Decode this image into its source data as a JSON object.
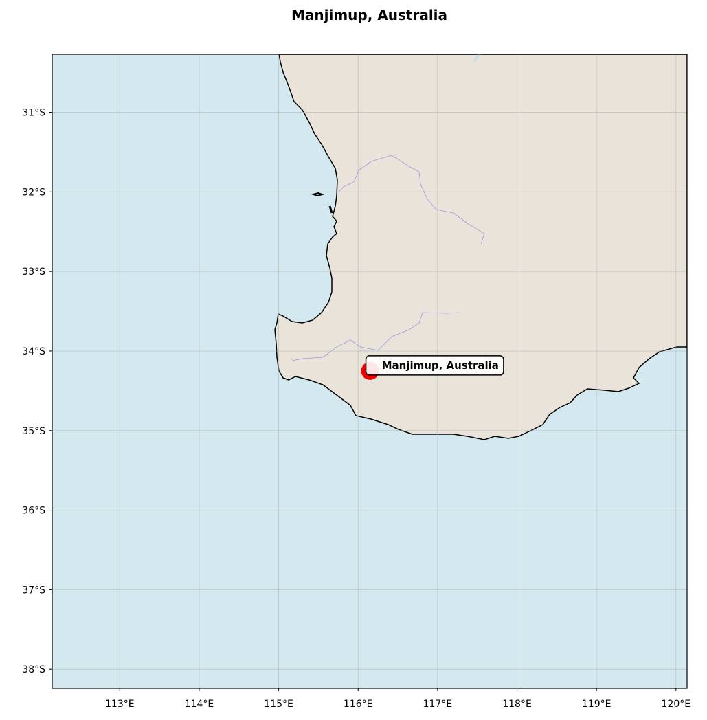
{
  "title": "Manjimup, Australia",
  "map": {
    "extent": {
      "lon": [
        112.15,
        120.14
      ],
      "lat": [
        -38.24,
        -30.27
      ]
    },
    "colors": {
      "ocean": "#d4e9ef",
      "land": "#e9e3d9",
      "coastline": "#000000",
      "rivers": "#9a9ae0",
      "marker": "#ee0000",
      "gridlines": "#b0b8bc"
    },
    "lat_ticks": [
      {
        "value": -31,
        "label": "31°S"
      },
      {
        "value": -32,
        "label": "32°S"
      },
      {
        "value": -33,
        "label": "33°S"
      },
      {
        "value": -34,
        "label": "34°S"
      },
      {
        "value": -35,
        "label": "35°S"
      },
      {
        "value": -36,
        "label": "36°S"
      },
      {
        "value": -37,
        "label": "37°S"
      },
      {
        "value": -38,
        "label": "38°S"
      }
    ],
    "lon_ticks": [
      {
        "value": 113,
        "label": "113°E"
      },
      {
        "value": 114,
        "label": "114°E"
      },
      {
        "value": 115,
        "label": "115°E"
      },
      {
        "value": 116,
        "label": "116°E"
      },
      {
        "value": 117,
        "label": "117°E"
      },
      {
        "value": 118,
        "label": "118°E"
      },
      {
        "value": 119,
        "label": "119°E"
      },
      {
        "value": 120,
        "label": "120°E"
      }
    ],
    "marker": {
      "label": "Manjimup, Australia",
      "lon": 116.15,
      "lat": -34.25
    }
  }
}
